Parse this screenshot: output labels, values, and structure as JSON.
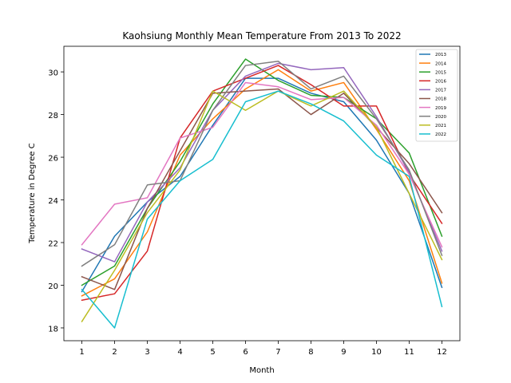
{
  "chart_data": {
    "type": "line",
    "title": "Kaohsiung Monthly Mean Temperature From 2013 To 2022",
    "xlabel": "Month",
    "ylabel": "Temperature in Degree C",
    "x": [
      1,
      2,
      3,
      4,
      5,
      6,
      7,
      8,
      9,
      10,
      11,
      12
    ],
    "xlim": [
      0.45,
      12.55
    ],
    "ylim": [
      17.4,
      31.2
    ],
    "yticks": [
      18,
      20,
      22,
      24,
      26,
      28,
      30
    ],
    "grid": false,
    "legend_position": "top-right",
    "series": [
      {
        "name": "2013",
        "color": "#1f77b4",
        "values": [
          19.7,
          22.3,
          23.9,
          25.1,
          27.5,
          29.7,
          29.7,
          29.0,
          28.6,
          26.8,
          24.3,
          19.9
        ]
      },
      {
        "name": "2014",
        "color": "#ff7f0e",
        "values": [
          19.5,
          20.3,
          22.5,
          26.1,
          27.8,
          29.2,
          30.1,
          29.1,
          29.5,
          27.3,
          24.9,
          20.1
        ]
      },
      {
        "name": "2015",
        "color": "#2ca02c",
        "values": [
          20.0,
          20.9,
          23.6,
          25.8,
          28.5,
          30.6,
          29.6,
          28.9,
          28.8,
          27.8,
          26.2,
          22.3
        ]
      },
      {
        "name": "2016",
        "color": "#d62728",
        "values": [
          19.3,
          19.6,
          21.6,
          26.9,
          29.1,
          29.7,
          30.3,
          29.4,
          28.4,
          28.4,
          25.2,
          22.9
        ]
      },
      {
        "name": "2017",
        "color": "#9467bd",
        "values": [
          21.7,
          21.1,
          23.9,
          25.5,
          28.2,
          29.8,
          30.4,
          30.1,
          30.2,
          27.9,
          25.3,
          21.6
        ]
      },
      {
        "name": "2018",
        "color": "#8c564b",
        "values": [
          20.4,
          19.8,
          23.6,
          26.3,
          29.0,
          29.1,
          29.2,
          28.0,
          29.0,
          27.4,
          25.7,
          23.4
        ]
      },
      {
        "name": "2019",
        "color": "#e377c2",
        "values": [
          21.9,
          23.8,
          24.1,
          26.9,
          27.4,
          29.5,
          29.3,
          28.7,
          28.8,
          27.5,
          25.2,
          21.8
        ]
      },
      {
        "name": "2020",
        "color": "#7f7f7f",
        "values": [
          20.9,
          21.9,
          24.7,
          24.9,
          28.2,
          30.3,
          30.5,
          29.2,
          29.8,
          27.8,
          25.4,
          21.4
        ]
      },
      {
        "name": "2021",
        "color": "#bcbd22",
        "values": [
          18.3,
          20.7,
          23.4,
          25.4,
          29.1,
          28.2,
          29.1,
          28.4,
          29.1,
          27.4,
          24.3,
          21.2
        ]
      },
      {
        "name": "2022",
        "color": "#17becf",
        "values": [
          19.8,
          18.0,
          23.1,
          24.9,
          25.9,
          28.6,
          29.1,
          28.5,
          27.7,
          26.1,
          25.1,
          19.0
        ]
      }
    ]
  }
}
